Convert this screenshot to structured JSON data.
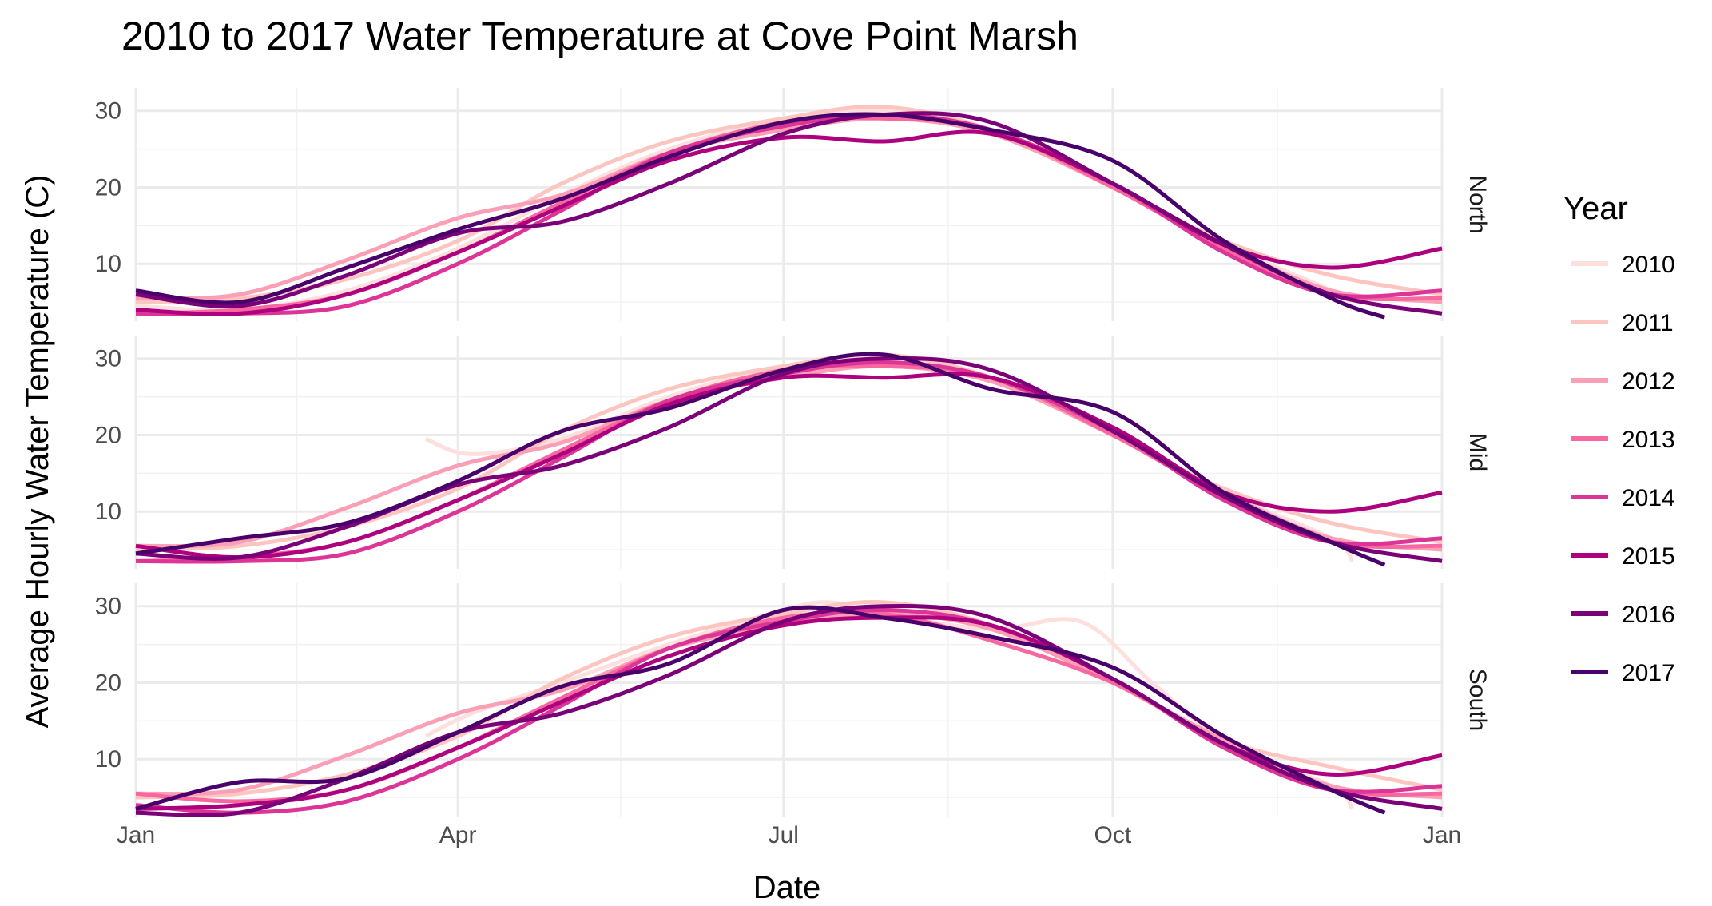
{
  "chart_data": {
    "type": "line",
    "title": "2010 to 2017 Water Temperature at Cove Point Marsh",
    "xlabel": "Date",
    "ylabel": "Average Hourly Water Temperature (C)",
    "x_unit": "day of year",
    "xlim": [
      1,
      366
    ],
    "ylim": [
      2.5,
      33
    ],
    "x_ticks": [
      {
        "value": 1,
        "label": "Jan"
      },
      {
        "value": 91,
        "label": "Apr"
      },
      {
        "value": 182,
        "label": "Jul"
      },
      {
        "value": 274,
        "label": "Oct"
      },
      {
        "value": 366,
        "label": "Jan"
      }
    ],
    "y_ticks": [
      10,
      20,
      30
    ],
    "grid": true,
    "legend": {
      "title": "Year",
      "position": "right"
    },
    "facets": [
      "North",
      "Mid",
      "South"
    ],
    "series_colors": {
      "2010": "#fde0dd",
      "2011": "#fcc5c0",
      "2012": "#fa9fb5",
      "2013": "#f768a1",
      "2014": "#dd3497",
      "2015": "#ae017e",
      "2016": "#7a0177",
      "2017": "#49006a"
    },
    "panels": [
      {
        "name": "North",
        "series": [
          {
            "name": "2010",
            "x": [
              1,
              30,
              60,
              91,
              120,
              150,
              182,
              210,
              240,
              274,
              305,
              335,
              341
            ],
            "y": [
              4.5,
              4.0,
              6.5,
              12.0,
              19.0,
              25.0,
              29.0,
              30.0,
              27.5,
              20.0,
              12.5,
              6.5,
              4.0
            ]
          },
          {
            "name": "2011",
            "x": [
              1,
              30,
              60,
              91,
              120,
              150,
              182,
              210,
              240,
              274,
              305,
              335,
              366
            ],
            "y": [
              5.0,
              5.5,
              8.0,
              13.0,
              20.5,
              26.0,
              29.0,
              30.5,
              27.5,
              20.0,
              13.0,
              8.5,
              6.0
            ]
          },
          {
            "name": "2012",
            "x": [
              1,
              30,
              60,
              91,
              120,
              150,
              182,
              210,
              240,
              274,
              305,
              335,
              366
            ],
            "y": [
              5.5,
              6.0,
              10.5,
              16.0,
              19.0,
              24.5,
              27.5,
              29.0,
              27.0,
              20.0,
              12.5,
              6.5,
              5.0
            ]
          },
          {
            "name": "2013",
            "x": [
              1,
              30,
              60,
              91,
              120,
              150,
              182,
              210,
              240,
              274,
              305,
              335,
              366
            ],
            "y": [
              3.5,
              4.0,
              6.0,
              11.5,
              18.0,
              24.5,
              28.5,
              29.0,
              27.5,
              20.0,
              12.0,
              6.0,
              5.5
            ]
          },
          {
            "name": "2014",
            "x": [
              1,
              30,
              60,
              91,
              120,
              150,
              182,
              210,
              240,
              274,
              305,
              335,
              366
            ],
            "y": [
              3.5,
              3.5,
              4.5,
              10.0,
              17.0,
              24.5,
              28.0,
              29.5,
              27.5,
              20.5,
              11.5,
              6.0,
              6.5
            ]
          },
          {
            "name": "2015",
            "x": [
              1,
              30,
              60,
              91,
              120,
              150,
              182,
              210,
              240,
              274,
              305,
              335,
              366
            ],
            "y": [
              4.0,
              3.5,
              6.0,
              11.5,
              17.5,
              23.5,
              26.5,
              26.0,
              27.0,
              20.5,
              12.5,
              9.5,
              12.0
            ]
          },
          {
            "name": "2016",
            "x": [
              1,
              30,
              60,
              91,
              120,
              150,
              182,
              210,
              240,
              274,
              305,
              335,
              366
            ],
            "y": [
              6.0,
              4.5,
              8.5,
              14.0,
              15.5,
              20.5,
              27.0,
              29.5,
              28.5,
              20.5,
              12.5,
              6.0,
              3.5
            ]
          },
          {
            "name": "2017",
            "x": [
              1,
              30,
              60,
              91,
              120,
              150,
              182,
              210,
              240,
              274,
              305,
              335,
              350
            ],
            "y": [
              6.5,
              5.0,
              9.5,
              14.5,
              18.5,
              24.0,
              28.5,
              29.5,
              27.5,
              23.5,
              13.0,
              5.5,
              3.0
            ]
          }
        ]
      },
      {
        "name": "Mid",
        "series": [
          {
            "name": "2010",
            "x": [
              82,
              95,
              120,
              150,
              182,
              210,
              240,
              274,
              305,
              335,
              341
            ],
            "y": [
              19.5,
              17.5,
              19.5,
              25.0,
              29.0,
              30.0,
              27.5,
              20.0,
              12.5,
              6.5,
              3.5
            ]
          },
          {
            "name": "2011",
            "x": [
              1,
              30,
              60,
              91,
              120,
              150,
              182,
              210,
              240,
              274,
              305,
              335,
              366
            ],
            "y": [
              5.0,
              5.5,
              8.0,
              13.0,
              20.5,
              26.0,
              29.0,
              30.5,
              27.5,
              20.0,
              13.0,
              8.5,
              6.0
            ]
          },
          {
            "name": "2012",
            "x": [
              1,
              30,
              60,
              91,
              120,
              150,
              182,
              210,
              240,
              274,
              305,
              335,
              366
            ],
            "y": [
              5.5,
              6.0,
              10.5,
              16.0,
              19.0,
              24.5,
              27.5,
              29.0,
              27.0,
              20.0,
              12.5,
              6.5,
              5.0
            ]
          },
          {
            "name": "2013",
            "x": [
              1,
              30,
              60,
              91,
              120,
              150,
              182,
              210,
              240,
              274,
              305,
              335,
              366
            ],
            "y": [
              3.5,
              4.0,
              6.0,
              11.5,
              18.0,
              24.5,
              28.5,
              29.0,
              27.5,
              20.0,
              12.0,
              6.0,
              5.5
            ]
          },
          {
            "name": "2014",
            "x": [
              1,
              30,
              60,
              91,
              120,
              150,
              182,
              210,
              240,
              274,
              305,
              335,
              366
            ],
            "y": [
              3.5,
              3.5,
              4.5,
              10.0,
              17.0,
              24.5,
              28.0,
              29.5,
              27.5,
              20.5,
              11.5,
              6.0,
              6.5
            ]
          },
          {
            "name": "2015",
            "x": [
              1,
              30,
              60,
              91,
              120,
              150,
              182,
              210,
              240,
              274,
              305,
              335,
              366
            ],
            "y": [
              5.5,
              4.0,
              6.0,
              11.5,
              17.5,
              24.0,
              27.5,
              27.5,
              27.5,
              21.0,
              12.5,
              10.0,
              12.5
            ]
          },
          {
            "name": "2016",
            "x": [
              1,
              30,
              60,
              91,
              120,
              150,
              182,
              210,
              240,
              274,
              305,
              335,
              366
            ],
            "y": [
              4.5,
              4.0,
              8.0,
              13.5,
              16.0,
              21.0,
              28.0,
              30.0,
              28.5,
              20.5,
              12.0,
              6.0,
              3.5
            ]
          },
          {
            "name": "2017",
            "x": [
              1,
              30,
              60,
              91,
              120,
              150,
              182,
              210,
              240,
              274,
              305,
              335,
              350
            ],
            "y": [
              4.5,
              6.5,
              8.5,
              14.0,
              20.5,
              23.5,
              28.5,
              30.5,
              26.0,
              23.0,
              12.5,
              6.0,
              3.0
            ]
          }
        ]
      },
      {
        "name": "South",
        "series": [
          {
            "name": "2010",
            "x": [
              82,
              95,
              120,
              150,
              182,
              195,
              210,
              240,
              265,
              285,
              305,
              335,
              341
            ],
            "y": [
              13.0,
              16.0,
              20.0,
              25.0,
              29.5,
              30.5,
              29.0,
              27.0,
              28.0,
              20.0,
              12.5,
              6.5,
              3.5
            ]
          },
          {
            "name": "2011",
            "x": [
              1,
              30,
              60,
              91,
              120,
              150,
              182,
              210,
              240,
              274,
              305,
              335,
              366
            ],
            "y": [
              5.0,
              5.5,
              8.0,
              13.0,
              20.5,
              26.0,
              29.0,
              30.5,
              27.5,
              20.0,
              12.5,
              9.0,
              6.0
            ]
          },
          {
            "name": "2012",
            "x": [
              1,
              30,
              60,
              91,
              120,
              150,
              182,
              210,
              240,
              274,
              305,
              335,
              366
            ],
            "y": [
              5.5,
              6.0,
              10.5,
              16.0,
              19.0,
              24.5,
              27.5,
              29.0,
              27.0,
              20.0,
              12.5,
              6.5,
              5.0
            ]
          },
          {
            "name": "2013",
            "x": [
              1,
              30,
              60,
              91,
              120,
              150,
              182,
              210,
              240,
              274,
              305,
              335,
              366
            ],
            "y": [
              5.5,
              4.5,
              6.0,
              11.5,
              18.0,
              24.5,
              28.5,
              29.0,
              25.5,
              20.0,
              12.0,
              6.0,
              5.5
            ]
          },
          {
            "name": "2014",
            "x": [
              1,
              30,
              60,
              91,
              120,
              150,
              182,
              210,
              240,
              274,
              305,
              335,
              366
            ],
            "y": [
              4.0,
              3.0,
              4.5,
              10.0,
              17.0,
              24.5,
              28.0,
              29.5,
              27.5,
              20.5,
              11.5,
              6.0,
              6.5
            ]
          },
          {
            "name": "2015",
            "x": [
              1,
              30,
              60,
              91,
              120,
              150,
              182,
              210,
              240,
              274,
              305,
              335,
              366
            ],
            "y": [
              3.5,
              4.0,
              6.0,
              11.5,
              17.5,
              23.5,
              27.5,
              28.5,
              27.5,
              20.5,
              12.0,
              8.0,
              10.5
            ]
          },
          {
            "name": "2016",
            "x": [
              1,
              30,
              60,
              91,
              120,
              150,
              182,
              210,
              240,
              274,
              305,
              335,
              366
            ],
            "y": [
              3.0,
              3.0,
              7.5,
              13.5,
              16.0,
              21.0,
              28.0,
              30.0,
              28.5,
              20.5,
              12.0,
              6.0,
              3.5
            ]
          },
          {
            "name": "2017",
            "x": [
              1,
              30,
              60,
              91,
              120,
              150,
              182,
              210,
              240,
              274,
              305,
              335,
              350
            ],
            "y": [
              3.5,
              7.0,
              7.5,
              13.5,
              19.5,
              22.5,
              29.5,
              28.5,
              26.0,
              22.0,
              13.0,
              6.0,
              3.0
            ]
          }
        ]
      }
    ]
  }
}
